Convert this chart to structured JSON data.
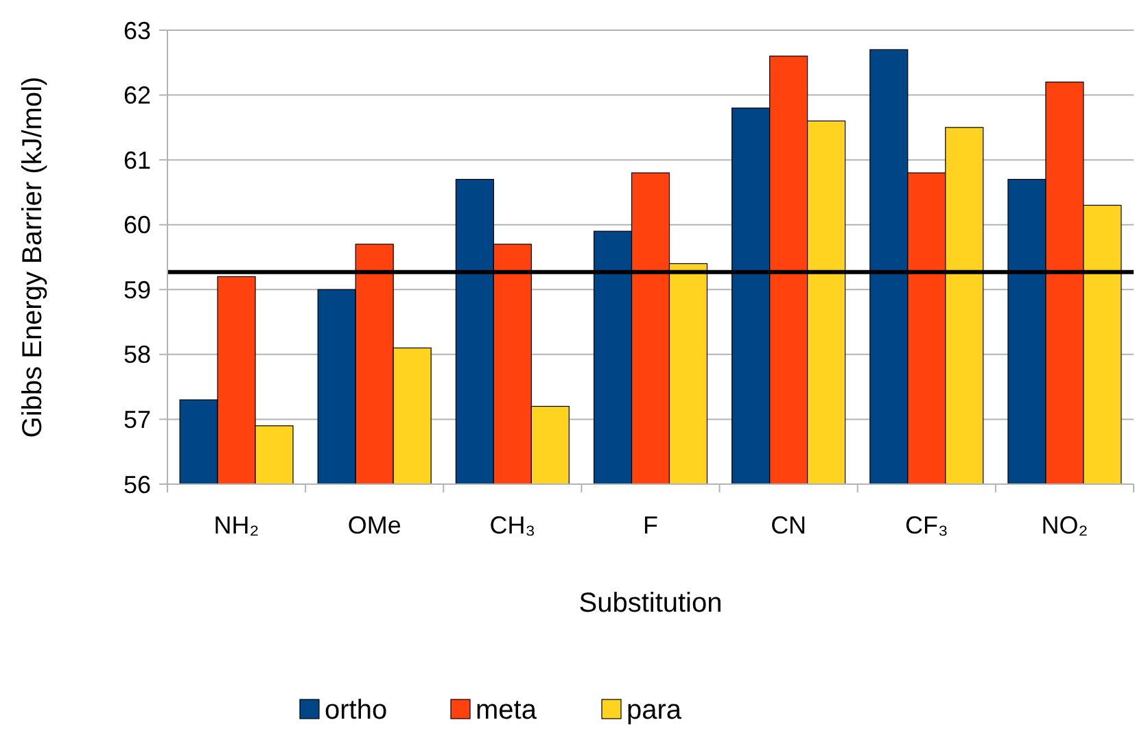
{
  "chart_data": {
    "type": "bar",
    "xlabel": "Substitution",
    "ylabel": "Gibbs Energy Barrier (kJ/mol)",
    "categories": [
      "NH₂",
      "OMe",
      "CH₃",
      "F",
      "CN",
      "CF₃",
      "NO₂"
    ],
    "series": [
      {
        "name": "ortho",
        "color": "#004586",
        "values": [
          57.3,
          59.0,
          60.7,
          59.9,
          61.8,
          62.7,
          60.7
        ]
      },
      {
        "name": "meta",
        "color": "#ff420e",
        "values": [
          59.2,
          59.7,
          59.7,
          60.8,
          62.6,
          60.8,
          62.2
        ]
      },
      {
        "name": "para",
        "color": "#ffd320",
        "values": [
          56.9,
          58.1,
          57.2,
          59.4,
          61.6,
          61.5,
          60.3
        ]
      }
    ],
    "ylim": [
      56,
      63
    ],
    "yticks": [
      56,
      57,
      58,
      59,
      60,
      61,
      62,
      63
    ],
    "grid": "y",
    "legend": "bottom",
    "ref_lines": [
      {
        "axis": "y",
        "value": 59.27,
        "color": "#000000"
      }
    ]
  }
}
